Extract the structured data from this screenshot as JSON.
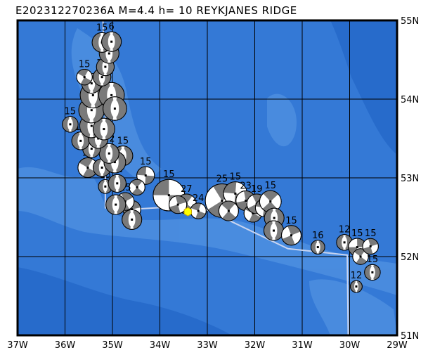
{
  "title": "E202312270236A M=4.4 h= 10 REYKJANES RIDGE",
  "map": {
    "lon_range": [
      -37,
      -29
    ],
    "lat_range": [
      51,
      55
    ],
    "lon_ticks": [
      "37W",
      "36W",
      "35W",
      "34W",
      "33W",
      "32W",
      "31W",
      "30W",
      "29W"
    ],
    "lat_ticks": [
      "51N",
      "52N",
      "53N",
      "54N",
      "55N"
    ],
    "colors": {
      "ocean": "#3479d6",
      "shallow": "#4d8fe0",
      "deep": "#2468c8",
      "grid": "#000000",
      "plate_boundary": "#c8d4f0",
      "compression": "#7a7a7a",
      "dilatation": "#ffffff",
      "event_marker": "#ffff00"
    },
    "event": {
      "lon": -33.41,
      "lat": 52.57,
      "marker": "yellow-hexagon"
    },
    "plate_boundary": [
      [
        -35.2,
        55
      ],
      [
        -35.15,
        53.8
      ],
      [
        -35.15,
        52.62
      ],
      [
        -34.6,
        52.6
      ],
      [
        -33.2,
        52.65
      ],
      [
        -31.3,
        52.1
      ],
      [
        -30.05,
        52.02
      ],
      [
        -30.03,
        51
      ]
    ],
    "mechanisms": [
      {
        "lon": -33.81,
        "lat": 52.78,
        "depth": "15",
        "mag": 5.2,
        "type": "ss"
      },
      {
        "lon": -33.44,
        "lat": 52.67,
        "depth": "27",
        "mag": 4.6,
        "type": "ss"
      },
      {
        "lon": -33.62,
        "lat": 52.66,
        "depth": "",
        "mag": 4.5,
        "type": "ss"
      },
      {
        "lon": -33.19,
        "lat": 52.58,
        "depth": "24",
        "mag": 4.4,
        "type": "ss"
      },
      {
        "lon": -32.69,
        "lat": 52.71,
        "depth": "25",
        "mag": 5.3,
        "type": "ss"
      },
      {
        "lon": -32.41,
        "lat": 52.8,
        "depth": "15",
        "mag": 4.8,
        "type": "ss"
      },
      {
        "lon": -32.55,
        "lat": 52.58,
        "depth": "",
        "mag": 4.6,
        "type": "ss"
      },
      {
        "lon": -32.19,
        "lat": 52.71,
        "depth": "23",
        "mag": 4.6,
        "type": "ss"
      },
      {
        "lon": -32.04,
        "lat": 52.55,
        "depth": "",
        "mag": 4.5,
        "type": "ss"
      },
      {
        "lon": -31.96,
        "lat": 52.67,
        "depth": "19",
        "mag": 4.6,
        "type": "ss"
      },
      {
        "lon": -31.8,
        "lat": 52.62,
        "depth": "",
        "mag": 4.5,
        "type": "ss"
      },
      {
        "lon": -31.67,
        "lat": 52.7,
        "depth": "15",
        "mag": 4.7,
        "type": "ss"
      },
      {
        "lon": -31.59,
        "lat": 52.49,
        "depth": "",
        "mag": 4.6,
        "type": "n"
      },
      {
        "lon": -31.6,
        "lat": 52.33,
        "depth": "",
        "mag": 4.6,
        "type": "n"
      },
      {
        "lon": -31.23,
        "lat": 52.27,
        "depth": "15",
        "mag": 4.6,
        "type": "ss"
      },
      {
        "lon": -30.67,
        "lat": 52.12,
        "depth": "16",
        "mag": 4.3,
        "type": "n"
      },
      {
        "lon": -30.11,
        "lat": 52.18,
        "depth": "12",
        "mag": 4.4,
        "type": "n"
      },
      {
        "lon": -29.84,
        "lat": 52.12,
        "depth": "15",
        "mag": 4.5,
        "type": "ss"
      },
      {
        "lon": -29.77,
        "lat": 52.0,
        "depth": "",
        "mag": 4.4,
        "type": "ss"
      },
      {
        "lon": -29.56,
        "lat": 52.13,
        "depth": "15",
        "mag": 4.4,
        "type": "ss"
      },
      {
        "lon": -29.52,
        "lat": 51.8,
        "depth": "15",
        "mag": 4.4,
        "type": "n"
      },
      {
        "lon": -29.86,
        "lat": 51.62,
        "depth": "12",
        "mag": 4.2,
        "type": "n"
      },
      {
        "lon": -34.3,
        "lat": 53.03,
        "depth": "15",
        "mag": 4.5,
        "type": "ss"
      },
      {
        "lon": -34.48,
        "lat": 52.88,
        "depth": "",
        "mag": 4.4,
        "type": "ss"
      },
      {
        "lon": -34.59,
        "lat": 52.6,
        "depth": "",
        "mag": 4.5,
        "type": "ss"
      },
      {
        "lon": -34.59,
        "lat": 52.47,
        "depth": "",
        "mag": 4.6,
        "type": "n"
      },
      {
        "lon": -34.73,
        "lat": 52.7,
        "depth": "15",
        "mag": 4.5,
        "type": "ss"
      },
      {
        "lon": -34.93,
        "lat": 52.66,
        "depth": "",
        "mag": 4.6,
        "type": "n"
      },
      {
        "lon": -35.15,
        "lat": 52.89,
        "depth": "15",
        "mag": 4.3,
        "type": "n"
      },
      {
        "lon": -34.9,
        "lat": 52.93,
        "depth": "12",
        "mag": 4.5,
        "type": "n"
      },
      {
        "lon": -35.52,
        "lat": 53.13,
        "depth": "15",
        "mag": 4.6,
        "type": "ss"
      },
      {
        "lon": -35.22,
        "lat": 53.13,
        "depth": "",
        "mag": 4.5,
        "type": "n"
      },
      {
        "lon": -34.78,
        "lat": 53.28,
        "depth": "15",
        "mag": 4.6,
        "type": "n"
      },
      {
        "lon": -34.95,
        "lat": 53.2,
        "depth": "",
        "mag": 4.7,
        "type": "n"
      },
      {
        "lon": -35.07,
        "lat": 53.31,
        "depth": "12",
        "mag": 4.6,
        "type": "n"
      },
      {
        "lon": -35.44,
        "lat": 53.37,
        "depth": "15",
        "mag": 4.5,
        "type": "n"
      },
      {
        "lon": -35.67,
        "lat": 53.47,
        "depth": "15",
        "mag": 4.5,
        "type": "n"
      },
      {
        "lon": -35.89,
        "lat": 53.68,
        "depth": "15",
        "mag": 4.4,
        "type": "n"
      },
      {
        "lon": -35.3,
        "lat": 53.5,
        "depth": "",
        "mag": 4.6,
        "type": "n"
      },
      {
        "lon": -35.44,
        "lat": 53.66,
        "depth": "",
        "mag": 4.8,
        "type": "n"
      },
      {
        "lon": -35.18,
        "lat": 53.62,
        "depth": "",
        "mag": 4.7,
        "type": "n"
      },
      {
        "lon": -35.44,
        "lat": 53.86,
        "depth": "",
        "mag": 4.9,
        "type": "n"
      },
      {
        "lon": -35.41,
        "lat": 54.05,
        "depth": "",
        "mag": 4.9,
        "type": "n"
      },
      {
        "lon": -35.02,
        "lat": 54.05,
        "depth": "",
        "mag": 4.9,
        "type": "n"
      },
      {
        "lon": -34.95,
        "lat": 53.88,
        "depth": "",
        "mag": 4.8,
        "type": "n"
      },
      {
        "lon": -35.44,
        "lat": 54.2,
        "depth": "",
        "mag": 4.6,
        "type": "n"
      },
      {
        "lon": -35.22,
        "lat": 54.28,
        "depth": "12",
        "mag": 4.5,
        "type": "n"
      },
      {
        "lon": -35.59,
        "lat": 54.28,
        "depth": "15",
        "mag": 4.4,
        "type": "ss"
      },
      {
        "lon": -35.15,
        "lat": 54.41,
        "depth": "12",
        "mag": 4.5,
        "type": "n"
      },
      {
        "lon": -35.07,
        "lat": 54.58,
        "depth": "",
        "mag": 4.6,
        "type": "n"
      },
      {
        "lon": -35.22,
        "lat": 54.72,
        "depth": "15",
        "mag": 4.6,
        "type": "n"
      },
      {
        "lon": -35.02,
        "lat": 54.73,
        "depth": "6",
        "mag": 4.6,
        "type": "n"
      }
    ]
  }
}
